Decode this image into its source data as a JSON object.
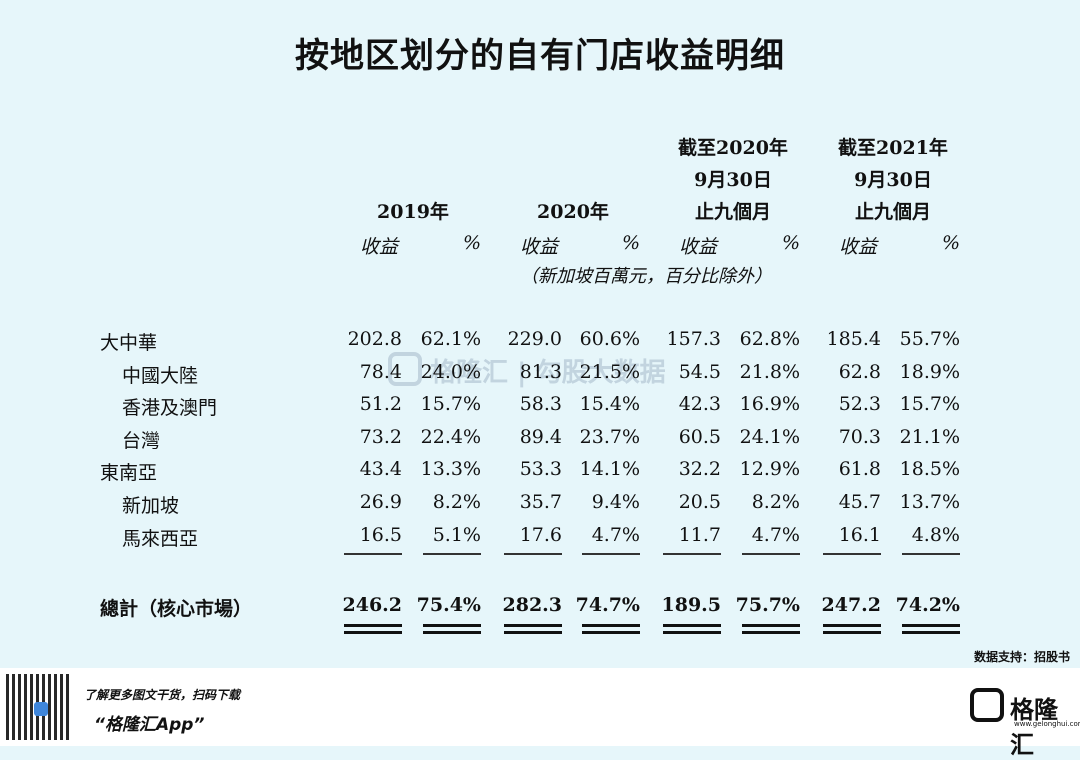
{
  "title": "按地区划分的自有门店收益明细",
  "columns": [
    {
      "header_lines": [
        "2019年"
      ],
      "sub": [
        "收益",
        "%"
      ]
    },
    {
      "header_lines": [
        "2020年"
      ],
      "sub": [
        "收益",
        "%"
      ]
    },
    {
      "header_lines": [
        "截至2020年",
        "9月30日",
        "止九個月"
      ],
      "sub": [
        "收益",
        "%"
      ]
    },
    {
      "header_lines": [
        "截至2021年",
        "9月30日",
        "止九個月"
      ],
      "sub": [
        "收益",
        "%"
      ]
    }
  ],
  "unit_note": "（新加坡百萬元，百分比除外）",
  "chart_data": {
    "type": "table",
    "title": "按地区划分的自有门店收益明细",
    "unit": "新加坡百萬元，百分比除外",
    "rows": [
      {
        "label": "大中華",
        "indent": false,
        "values": [
          "202.8",
          "62.1%",
          "229.0",
          "60.6%",
          "157.3",
          "62.8%",
          "185.4",
          "55.7%"
        ]
      },
      {
        "label": "中國大陸",
        "indent": true,
        "values": [
          "78.4",
          "24.0%",
          "81.3",
          "21.5%",
          "54.5",
          "21.8%",
          "62.8",
          "18.9%"
        ]
      },
      {
        "label": "香港及澳門",
        "indent": true,
        "values": [
          "51.2",
          "15.7%",
          "58.3",
          "15.4%",
          "42.3",
          "16.9%",
          "52.3",
          "15.7%"
        ]
      },
      {
        "label": "台灣",
        "indent": true,
        "values": [
          "73.2",
          "22.4%",
          "89.4",
          "23.7%",
          "60.5",
          "24.1%",
          "70.3",
          "21.1%"
        ]
      },
      {
        "label": "東南亞",
        "indent": false,
        "values": [
          "43.4",
          "13.3%",
          "53.3",
          "14.1%",
          "32.2",
          "12.9%",
          "61.8",
          "18.5%"
        ]
      },
      {
        "label": "新加坡",
        "indent": true,
        "values": [
          "26.9",
          "8.2%",
          "35.7",
          "9.4%",
          "20.5",
          "8.2%",
          "45.7",
          "13.7%"
        ]
      },
      {
        "label": "馬來西亞",
        "indent": true,
        "values": [
          "16.5",
          "5.1%",
          "17.6",
          "4.7%",
          "11.7",
          "4.7%",
          "16.1",
          "4.8%"
        ]
      }
    ],
    "total": {
      "label": "總計（核心市場）",
      "values": [
        "246.2",
        "75.4%",
        "282.3",
        "74.7%",
        "189.5",
        "75.7%",
        "247.2",
        "74.2%"
      ]
    }
  },
  "watermark": "格隆汇 | 勾股大数据",
  "source": "数据支持：招股书",
  "footer": {
    "line1": "了解更多图文干货，扫码下载",
    "line2": "“格隆汇App”",
    "logo_text": "格隆汇",
    "logo_sub": "www.gelonghui.com"
  }
}
